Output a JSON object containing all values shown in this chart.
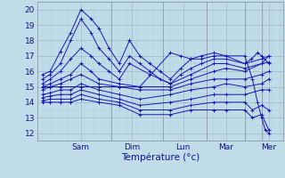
{
  "xlabel": "Température (°c)",
  "bg_color": "#c0dce8",
  "plot_bg_color": "#c0dce8",
  "grid_major_color": "#a0b8c8",
  "grid_minor_color": "#b0cad8",
  "line_color": "#1a1ab0",
  "ylim": [
    11.5,
    20.5
  ],
  "yticks": [
    12,
    13,
    14,
    15,
    16,
    17,
    18,
    19,
    20
  ],
  "xlim": [
    -0.1,
    4.7
  ],
  "day_positions": [
    0.75,
    1.75,
    2.75,
    3.58,
    4.42
  ],
  "day_labels": [
    "Sam",
    "Dim",
    "Lun",
    "Mar",
    "Mer"
  ],
  "day_sep_positions": [
    1.35,
    2.35,
    3.2,
    3.95,
    4.28
  ],
  "series": [
    {
      "x": [
        0.0,
        0.15,
        0.35,
        0.55,
        0.75,
        0.95,
        1.1,
        1.3,
        1.5,
        1.7,
        1.9,
        2.1,
        2.3,
        2.5,
        2.7,
        2.9,
        3.1,
        3.35,
        3.58,
        3.95,
        4.08,
        4.2,
        4.28,
        4.42
      ],
      "y": [
        15.8,
        16.0,
        17.3,
        18.5,
        20.0,
        19.4,
        18.8,
        17.5,
        16.5,
        18.0,
        17.0,
        16.5,
        16.0,
        15.5,
        16.2,
        16.8,
        17.0,
        17.2,
        17.0,
        16.5,
        16.8,
        17.2,
        17.0,
        16.5
      ]
    },
    {
      "x": [
        0.0,
        0.15,
        0.35,
        0.55,
        0.75,
        0.95,
        1.1,
        1.3,
        1.5,
        1.7,
        1.9,
        2.1,
        2.3,
        2.5,
        2.7,
        2.9,
        3.1,
        3.35,
        3.58,
        3.95,
        4.28,
        4.42
      ],
      "y": [
        15.5,
        15.8,
        16.5,
        18.0,
        19.4,
        18.5,
        17.5,
        16.8,
        16.0,
        17.0,
        16.5,
        16.0,
        15.5,
        15.2,
        15.8,
        16.2,
        16.5,
        16.8,
        16.8,
        16.5,
        16.8,
        17.0
      ]
    },
    {
      "x": [
        0.0,
        0.15,
        0.35,
        0.55,
        0.75,
        0.95,
        1.1,
        1.3,
        1.5,
        1.7,
        2.1,
        2.5,
        2.9,
        3.35,
        3.58,
        3.95,
        4.28,
        4.42
      ],
      "y": [
        15.2,
        15.5,
        16.0,
        16.8,
        17.5,
        17.0,
        16.5,
        16.0,
        15.5,
        16.5,
        15.8,
        15.2,
        15.8,
        16.5,
        16.5,
        16.2,
        16.5,
        17.0
      ]
    },
    {
      "x": [
        0.0,
        0.15,
        0.35,
        0.55,
        0.75,
        0.95,
        1.1,
        1.5,
        1.9,
        2.5,
        2.9,
        3.35,
        3.58,
        3.95,
        4.28,
        4.42
      ],
      "y": [
        15.0,
        15.2,
        15.5,
        15.8,
        16.5,
        16.0,
        15.5,
        15.2,
        15.0,
        15.0,
        15.5,
        16.0,
        16.2,
        16.0,
        16.5,
        16.6
      ]
    },
    {
      "x": [
        0.0,
        0.15,
        0.35,
        0.55,
        0.75,
        1.1,
        1.5,
        1.9,
        2.5,
        2.9,
        3.35,
        3.58,
        3.95,
        4.28,
        4.42
      ],
      "y": [
        14.8,
        15.0,
        15.2,
        15.5,
        15.8,
        15.2,
        15.0,
        14.8,
        14.8,
        15.2,
        15.5,
        15.5,
        15.5,
        15.8,
        16.0
      ]
    },
    {
      "x": [
        0.0,
        0.15,
        0.35,
        0.55,
        0.75,
        1.1,
        1.5,
        1.9,
        2.5,
        2.9,
        3.35,
        3.58,
        3.95,
        4.28,
        4.42
      ],
      "y": [
        14.5,
        14.6,
        14.8,
        14.8,
        15.2,
        14.8,
        14.5,
        14.2,
        14.5,
        14.8,
        15.0,
        15.2,
        15.0,
        15.2,
        15.5
      ]
    },
    {
      "x": [
        0.0,
        0.15,
        0.35,
        0.55,
        0.75,
        1.1,
        1.5,
        1.9,
        2.5,
        2.9,
        3.35,
        3.58,
        3.95,
        4.28,
        4.42
      ],
      "y": [
        14.3,
        14.4,
        14.5,
        14.5,
        14.8,
        14.5,
        14.2,
        13.8,
        14.0,
        14.2,
        14.5,
        14.5,
        14.5,
        14.8,
        14.8
      ]
    },
    {
      "x": [
        0.0,
        0.15,
        0.35,
        0.55,
        0.75,
        1.1,
        1.5,
        1.9,
        2.5,
        2.9,
        3.35,
        3.58,
        3.95,
        4.1,
        4.28,
        4.42
      ],
      "y": [
        14.1,
        14.2,
        14.2,
        14.2,
        14.5,
        14.2,
        14.0,
        13.5,
        13.5,
        13.8,
        14.0,
        14.0,
        14.0,
        13.5,
        13.8,
        13.5
      ]
    },
    {
      "x": [
        0.0,
        0.15,
        0.35,
        0.55,
        0.75,
        1.1,
        1.5,
        1.9,
        2.5,
        2.9,
        3.35,
        3.58,
        3.95,
        4.1,
        4.28,
        4.42
      ],
      "y": [
        14.0,
        14.0,
        14.0,
        14.0,
        14.2,
        14.0,
        13.8,
        13.2,
        13.2,
        13.5,
        13.5,
        13.5,
        13.5,
        13.0,
        13.2,
        12.2
      ]
    },
    {
      "x": [
        0.0,
        0.15,
        0.35,
        0.75,
        1.1,
        1.5,
        1.9,
        2.5,
        2.7,
        2.9,
        3.1,
        3.35,
        3.58,
        3.95,
        4.1,
        4.2,
        4.28,
        4.35,
        4.42
      ],
      "y": [
        15.0,
        15.0,
        15.0,
        15.0,
        15.0,
        15.0,
        15.0,
        17.2,
        17.0,
        16.8,
        16.8,
        17.0,
        17.0,
        17.0,
        15.5,
        14.0,
        13.0,
        12.2,
        12.0
      ]
    }
  ]
}
